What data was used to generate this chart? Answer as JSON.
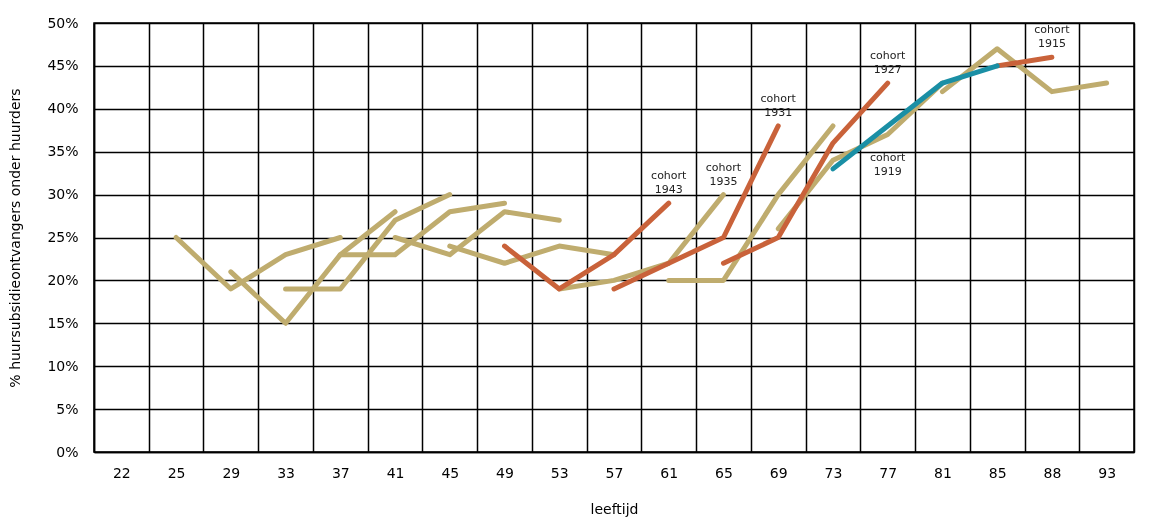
{
  "chart_data": {
    "type": "line",
    "xlabel": "leeftijd",
    "ylabel": "% huursubsidieontvangers onder huurders",
    "categories": [
      "22",
      "25",
      "29",
      "33",
      "37",
      "41",
      "45",
      "49",
      "53",
      "57",
      "61",
      "65",
      "69",
      "73",
      "77",
      "81",
      "85",
      "88",
      "93"
    ],
    "ylim": [
      0,
      50
    ],
    "yticks": [
      {
        "value": 0,
        "label": "0%"
      },
      {
        "value": 5,
        "label": "5%"
      },
      {
        "value": 10,
        "label": "10%"
      },
      {
        "value": 15,
        "label": "15%"
      },
      {
        "value": 20,
        "label": "20%"
      },
      {
        "value": 25,
        "label": "25%"
      },
      {
        "value": 30,
        "label": "30%"
      },
      {
        "value": 35,
        "label": "35%"
      },
      {
        "value": 40,
        "label": "40%"
      },
      {
        "value": 45,
        "label": "45%"
      },
      {
        "value": 50,
        "label": "50%"
      }
    ],
    "grid": true,
    "series": [
      {
        "color": "#bfac6e",
        "values": [
          null,
          25,
          19,
          23,
          25,
          null,
          null,
          null,
          null,
          null,
          null,
          null,
          null,
          null,
          null,
          null,
          null,
          null,
          null
        ]
      },
      {
        "color": "#bfac6e",
        "values": [
          null,
          null,
          21,
          15,
          23,
          28,
          null,
          null,
          null,
          null,
          null,
          null,
          null,
          null,
          null,
          null,
          null,
          null,
          null
        ]
      },
      {
        "color": "#bfac6e",
        "values": [
          null,
          null,
          null,
          null,
          23,
          23,
          28,
          29,
          null,
          null,
          null,
          null,
          null,
          null,
          null,
          null,
          null,
          null,
          null
        ]
      },
      {
        "color": "#bfac6e",
        "values": [
          null,
          null,
          null,
          19,
          19,
          27,
          30,
          null,
          null,
          null,
          null,
          null,
          null,
          null,
          null,
          null,
          null,
          null,
          null
        ]
      },
      {
        "color": "#bfac6e",
        "values": [
          null,
          null,
          null,
          null,
          null,
          25,
          23,
          28,
          27,
          null,
          null,
          null,
          null,
          null,
          null,
          null,
          null,
          null,
          null
        ]
      },
      {
        "color": "#bfac6e",
        "values": [
          null,
          null,
          null,
          null,
          null,
          null,
          24,
          22,
          24,
          23,
          null,
          null,
          null,
          null,
          null,
          null,
          null,
          null,
          null
        ]
      },
      {
        "color": "#bfac6e",
        "values": [
          null,
          null,
          null,
          null,
          null,
          null,
          null,
          null,
          19,
          20,
          22,
          30,
          null,
          null,
          null,
          null,
          null,
          null,
          null
        ]
      },
      {
        "color": "#bfac6e",
        "values": [
          null,
          null,
          null,
          null,
          null,
          null,
          null,
          null,
          null,
          null,
          20,
          20,
          30,
          38,
          null,
          null,
          null,
          null,
          null
        ]
      },
      {
        "color": "#bfac6e",
        "values": [
          null,
          null,
          null,
          null,
          null,
          null,
          null,
          null,
          null,
          null,
          null,
          null,
          26,
          34,
          37,
          43,
          null,
          null,
          null
        ]
      },
      {
        "color": "#bfac6e",
        "values": [
          null,
          null,
          null,
          null,
          null,
          null,
          null,
          null,
          null,
          null,
          null,
          null,
          null,
          null,
          null,
          42,
          47,
          42,
          43
        ]
      },
      {
        "color": "#c9623a",
        "values": [
          null,
          null,
          null,
          null,
          null,
          null,
          null,
          24,
          19,
          23,
          29,
          null,
          null,
          null,
          null,
          null,
          null,
          null,
          null
        ]
      },
      {
        "color": "#c9623a",
        "values": [
          null,
          null,
          null,
          null,
          null,
          null,
          null,
          null,
          null,
          19,
          22,
          25,
          38,
          null,
          null,
          null,
          null,
          null,
          null
        ]
      },
      {
        "color": "#c9623a",
        "values": [
          null,
          null,
          null,
          null,
          null,
          null,
          null,
          null,
          null,
          null,
          null,
          22,
          25,
          36,
          43,
          null,
          null,
          null,
          null
        ]
      },
      {
        "color": "#c9623a",
        "values": [
          null,
          null,
          null,
          null,
          null,
          null,
          null,
          null,
          null,
          null,
          null,
          null,
          null,
          null,
          null,
          null,
          45,
          46,
          null
        ]
      },
      {
        "color": "#1a8fa5",
        "values": [
          null,
          null,
          null,
          null,
          null,
          null,
          null,
          null,
          null,
          null,
          null,
          null,
          null,
          33,
          38,
          43,
          45,
          null,
          null
        ]
      }
    ],
    "annotations": [
      {
        "text": "cohort 1943",
        "x": "61",
        "y": 29
      },
      {
        "text": "cohort 1935",
        "x": "65",
        "y": 30
      },
      {
        "text": "cohort 1931",
        "x": "69",
        "y": 38
      },
      {
        "text": "cohort 1927",
        "x": "77",
        "y": 43
      },
      {
        "text": "cohort 1919",
        "x": "77",
        "y": 38
      },
      {
        "text": "cohort 1915",
        "x": "88",
        "y": 46
      }
    ]
  }
}
